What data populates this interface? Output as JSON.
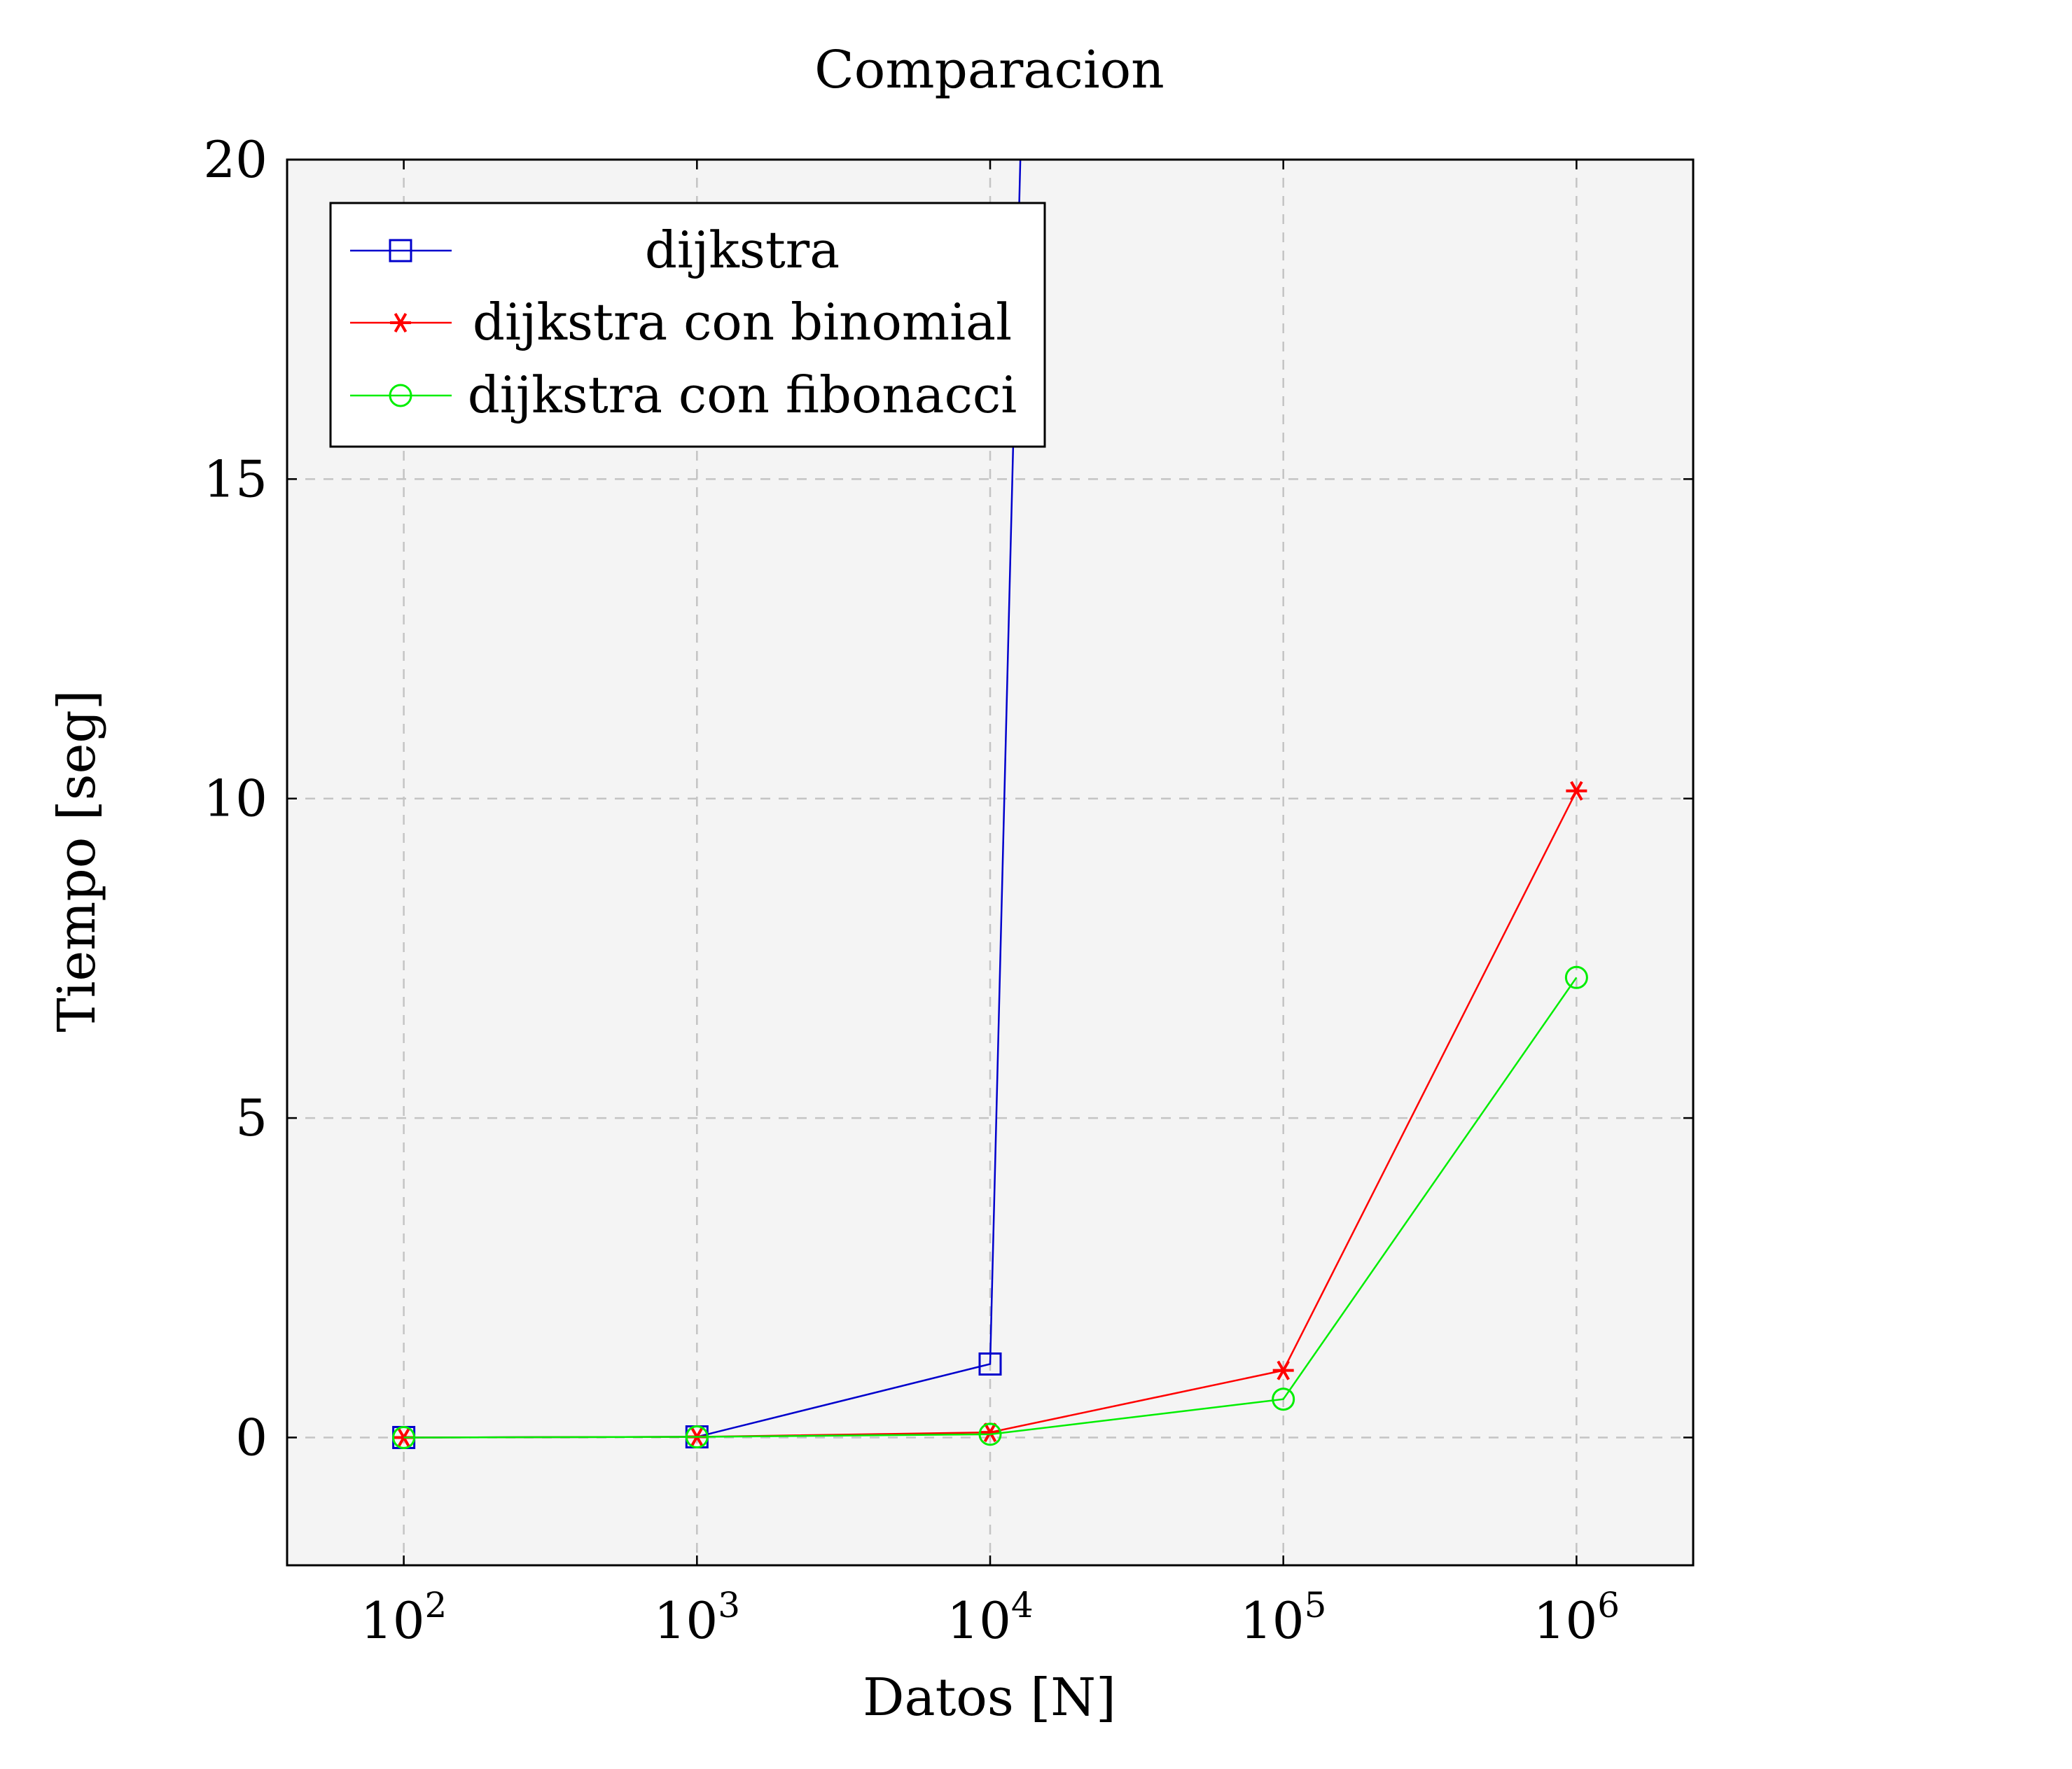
{
  "chart_data": {
    "type": "line",
    "title": "Comparacion",
    "xlabel": "Datos [N]",
    "ylabel": "Tiempo [seg]",
    "x_scale": "log",
    "x": [
      100,
      1000,
      10000,
      100000,
      1000000
    ],
    "x_ticks": [
      {
        "base": "10",
        "exp": "2",
        "value": 100
      },
      {
        "base": "10",
        "exp": "3",
        "value": 1000
      },
      {
        "base": "10",
        "exp": "4",
        "value": 10000
      },
      {
        "base": "10",
        "exp": "5",
        "value": 100000
      },
      {
        "base": "10",
        "exp": "6",
        "value": 1000000
      }
    ],
    "y_ticks": [
      "0",
      "5",
      "10",
      "15",
      "20"
    ],
    "xlim": [
      40,
      2500000
    ],
    "ylim": [
      -2,
      20
    ],
    "grid": true,
    "legend_position": "top-left",
    "background_color": "#f4f4f4",
    "series": [
      {
        "name": "dijkstra",
        "color": "#0000cc",
        "marker": "square",
        "x": [
          100,
          1000,
          10000,
          13500
        ],
        "values": [
          0.0,
          0.01,
          1.15,
          25
        ]
      },
      {
        "name": "dijkstra con binomial",
        "color": "#ff0000",
        "marker": "asterisk",
        "x": [
          100,
          1000,
          10000,
          100000,
          1000000
        ],
        "values": [
          0.0,
          0.01,
          0.08,
          1.05,
          10.12
        ]
      },
      {
        "name": "dijkstra con fibonacci",
        "color": "#00ee00",
        "marker": "circle",
        "x": [
          100,
          1000,
          10000,
          100000,
          1000000
        ],
        "values": [
          0.0,
          0.01,
          0.05,
          0.6,
          7.2
        ]
      }
    ]
  }
}
